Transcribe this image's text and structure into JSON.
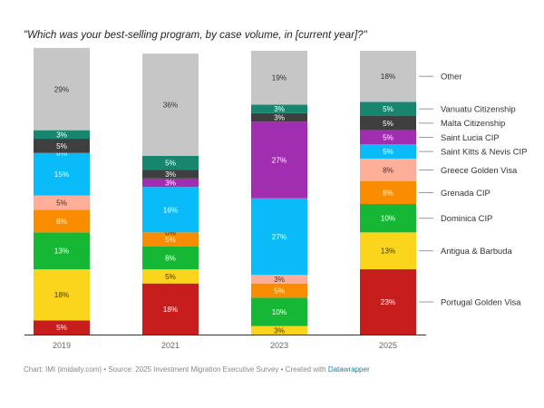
{
  "title": "\"Which was your best-selling program, by case volume, in [current year]?\"",
  "footer": {
    "prefix": "Chart: IMI (imidaily.com) • Source: 2025 Investment Migration Executive Survey • Created with ",
    "link_text": "Datawrapper"
  },
  "chart_data": {
    "type": "bar",
    "stacked": true,
    "normalized_percent": true,
    "categories": [
      "2019",
      "2021",
      "2023",
      "2025"
    ],
    "ylim": [
      0,
      100
    ],
    "xlabel": "",
    "ylabel": "",
    "series": [
      {
        "name": "Portugal Golden Visa",
        "color": "#c71e1d",
        "values": [
          5,
          18,
          0,
          23
        ],
        "labels": [
          "5%",
          "18%",
          "",
          "23%"
        ]
      },
      {
        "name": "Antigua & Barbuda",
        "color": "#fad51c",
        "values": [
          18,
          5,
          3,
          13
        ],
        "labels": [
          "18%",
          "5%",
          "3%",
          "13%"
        ]
      },
      {
        "name": "Dominica CIP",
        "color": "#15b735",
        "values": [
          13,
          8,
          10,
          10
        ],
        "labels": [
          "13%",
          "8%",
          "10%",
          "10%"
        ]
      },
      {
        "name": "Grenada CIP",
        "color": "#fa8c00",
        "values": [
          8,
          5,
          5,
          8
        ],
        "labels": [
          "8%",
          "5%",
          "5%",
          "8%"
        ]
      },
      {
        "name": "Greece Golden Visa",
        "color": "#ffaf99",
        "values": [
          5,
          0,
          3,
          8
        ],
        "labels": [
          "5%",
          "0%",
          "3%",
          "8%"
        ]
      },
      {
        "name": "Saint Kitts & Nevis CIP",
        "color": "#09bbf9",
        "values": [
          15,
          16,
          27,
          5
        ],
        "labels": [
          "15%",
          "16%",
          "27%",
          "5%"
        ]
      },
      {
        "name": "Saint Lucia CIP",
        "color": "#a12db1",
        "values": [
          0,
          3,
          27,
          5
        ],
        "labels": [
          "0%",
          "3%",
          "27%",
          "5%"
        ]
      },
      {
        "name": "Malta Citizenship",
        "color": "#3f3f3f",
        "values": [
          5,
          3,
          3,
          5
        ],
        "labels": [
          "5%",
          "3%",
          "3%",
          "5%"
        ]
      },
      {
        "name": "Vanuatu Citizenship",
        "color": "#18866f",
        "values": [
          3,
          5,
          3,
          5
        ],
        "labels": [
          "3%",
          "5%",
          "3%",
          "5%"
        ]
      },
      {
        "name": "Other",
        "color": "#c6c6c6",
        "values": [
          29,
          36,
          19,
          18
        ],
        "labels": [
          "29%",
          "36%",
          "19%",
          "18%"
        ]
      }
    ],
    "legend": {
      "placement": "right",
      "order": [
        "Other",
        "Vanuatu Citizenship",
        "Malta Citizenship",
        "Saint Lucia CIP",
        "Saint Kitts & Nevis CIP",
        "Greece Golden Visa",
        "Grenada CIP",
        "Dominica CIP",
        "Antigua & Barbuda",
        "Portugal Golden Visa"
      ]
    }
  }
}
